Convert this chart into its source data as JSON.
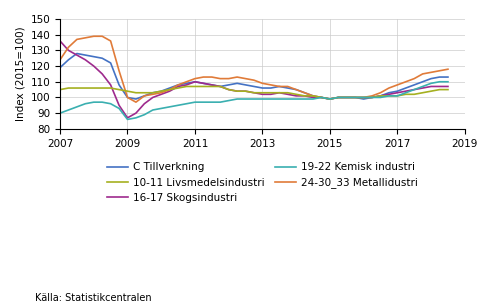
{
  "title": "",
  "ylabel": "Index (2015=100)",
  "xlabel": "",
  "source": "Källa: Statistikcentralen",
  "ylim": [
    80,
    150
  ],
  "yticks": [
    80,
    90,
    100,
    110,
    120,
    130,
    140,
    150
  ],
  "xlim": [
    2007.0,
    2019.0
  ],
  "xticks": [
    2007,
    2009,
    2011,
    2013,
    2015,
    2017,
    2019
  ],
  "background_color": "#ffffff",
  "grid_color": "#cccccc",
  "series": {
    "C Tillverkning": {
      "color": "#4472c4",
      "data_x": [
        2007.0,
        2007.25,
        2007.5,
        2007.75,
        2008.0,
        2008.25,
        2008.5,
        2008.75,
        2009.0,
        2009.25,
        2009.5,
        2009.75,
        2010.0,
        2010.25,
        2010.5,
        2010.75,
        2011.0,
        2011.25,
        2011.5,
        2011.75,
        2012.0,
        2012.25,
        2012.5,
        2012.75,
        2013.0,
        2013.25,
        2013.5,
        2013.75,
        2014.0,
        2014.25,
        2014.5,
        2014.75,
        2015.0,
        2015.25,
        2015.5,
        2015.75,
        2016.0,
        2016.25,
        2016.5,
        2016.75,
        2017.0,
        2017.25,
        2017.5,
        2017.75,
        2018.0,
        2018.25,
        2018.5
      ],
      "data_y": [
        119,
        124,
        128,
        127,
        126,
        125,
        122,
        108,
        100,
        99,
        101,
        103,
        104,
        106,
        108,
        109,
        110,
        109,
        108,
        107,
        108,
        109,
        108,
        107,
        106,
        106,
        107,
        106,
        105,
        103,
        101,
        100,
        99,
        100,
        100,
        100,
        99,
        100,
        101,
        103,
        104,
        106,
        108,
        110,
        112,
        113,
        113
      ]
    },
    "16-17 Skogsindustri": {
      "color": "#9e2a8d",
      "data_x": [
        2007.0,
        2007.25,
        2007.5,
        2007.75,
        2008.0,
        2008.25,
        2008.5,
        2008.75,
        2009.0,
        2009.25,
        2009.5,
        2009.75,
        2010.0,
        2010.25,
        2010.5,
        2010.75,
        2011.0,
        2011.25,
        2011.5,
        2011.75,
        2012.0,
        2012.25,
        2012.5,
        2012.75,
        2013.0,
        2013.25,
        2013.5,
        2013.75,
        2014.0,
        2014.25,
        2014.5,
        2014.75,
        2015.0,
        2015.25,
        2015.5,
        2015.75,
        2016.0,
        2016.25,
        2016.5,
        2016.75,
        2017.0,
        2017.25,
        2017.5,
        2017.75,
        2018.0,
        2018.25,
        2018.5
      ],
      "data_y": [
        136,
        130,
        127,
        124,
        120,
        115,
        108,
        95,
        87,
        90,
        96,
        100,
        102,
        104,
        107,
        108,
        110,
        109,
        108,
        107,
        105,
        104,
        104,
        103,
        102,
        102,
        103,
        102,
        101,
        101,
        100,
        100,
        99,
        100,
        100,
        100,
        100,
        100,
        101,
        102,
        103,
        104,
        105,
        106,
        107,
        107,
        107
      ]
    },
    "24-30_33 Metallidustri": {
      "color": "#e07b39",
      "data_x": [
        2007.0,
        2007.25,
        2007.5,
        2007.75,
        2008.0,
        2008.25,
        2008.5,
        2008.75,
        2009.0,
        2009.25,
        2009.5,
        2009.75,
        2010.0,
        2010.25,
        2010.5,
        2010.75,
        2011.0,
        2011.25,
        2011.5,
        2011.75,
        2012.0,
        2012.25,
        2012.5,
        2012.75,
        2013.0,
        2013.25,
        2013.5,
        2013.75,
        2014.0,
        2014.25,
        2014.5,
        2014.75,
        2015.0,
        2015.25,
        2015.5,
        2015.75,
        2016.0,
        2016.25,
        2016.5,
        2016.75,
        2017.0,
        2017.25,
        2017.5,
        2017.75,
        2018.0,
        2018.25,
        2018.5
      ],
      "data_y": [
        124,
        132,
        137,
        138,
        139,
        139,
        136,
        117,
        100,
        97,
        101,
        102,
        103,
        105,
        108,
        110,
        112,
        113,
        113,
        112,
        112,
        113,
        112,
        111,
        109,
        108,
        107,
        107,
        105,
        103,
        101,
        100,
        99,
        100,
        100,
        100,
        100,
        101,
        103,
        106,
        108,
        110,
        112,
        115,
        116,
        117,
        118
      ]
    },
    "10-11 Livsmedelsindustri": {
      "color": "#a5b020",
      "data_x": [
        2007.0,
        2007.25,
        2007.5,
        2007.75,
        2008.0,
        2008.25,
        2008.5,
        2008.75,
        2009.0,
        2009.25,
        2009.5,
        2009.75,
        2010.0,
        2010.25,
        2010.5,
        2010.75,
        2011.0,
        2011.25,
        2011.5,
        2011.75,
        2012.0,
        2012.25,
        2012.5,
        2012.75,
        2013.0,
        2013.25,
        2013.5,
        2013.75,
        2014.0,
        2014.25,
        2014.5,
        2014.75,
        2015.0,
        2015.25,
        2015.5,
        2015.75,
        2016.0,
        2016.25,
        2016.5,
        2016.75,
        2017.0,
        2017.25,
        2017.5,
        2017.75,
        2018.0,
        2018.25,
        2018.5
      ],
      "data_y": [
        105,
        106,
        106,
        106,
        106,
        106,
        106,
        105,
        104,
        103,
        103,
        103,
        104,
        105,
        106,
        107,
        107,
        107,
        107,
        107,
        105,
        104,
        104,
        103,
        103,
        103,
        103,
        103,
        102,
        101,
        101,
        100,
        99,
        100,
        100,
        100,
        100,
        100,
        101,
        101,
        101,
        102,
        102,
        103,
        104,
        105,
        105
      ]
    },
    "19-22 Kemisk industri": {
      "color": "#3aafb0",
      "data_x": [
        2007.0,
        2007.25,
        2007.5,
        2007.75,
        2008.0,
        2008.25,
        2008.5,
        2008.75,
        2009.0,
        2009.25,
        2009.5,
        2009.75,
        2010.0,
        2010.25,
        2010.5,
        2010.75,
        2011.0,
        2011.25,
        2011.5,
        2011.75,
        2012.0,
        2012.25,
        2012.5,
        2012.75,
        2013.0,
        2013.25,
        2013.5,
        2013.75,
        2014.0,
        2014.25,
        2014.5,
        2014.75,
        2015.0,
        2015.25,
        2015.5,
        2015.75,
        2016.0,
        2016.25,
        2016.5,
        2016.75,
        2017.0,
        2017.25,
        2017.5,
        2017.75,
        2018.0,
        2018.25,
        2018.5
      ],
      "data_y": [
        90,
        92,
        94,
        96,
        97,
        97,
        96,
        93,
        86,
        87,
        89,
        92,
        93,
        94,
        95,
        96,
        97,
        97,
        97,
        97,
        98,
        99,
        99,
        99,
        99,
        99,
        99,
        99,
        99,
        99,
        99,
        100,
        99,
        100,
        100,
        100,
        100,
        100,
        100,
        101,
        101,
        103,
        105,
        107,
        109,
        110,
        110
      ]
    }
  },
  "legend": {
    "entries": [
      "C Tillverkning",
      "10-11 Livsmedelsindustri",
      "16-17 Skogsindustri",
      "19-22 Kemisk industri",
      "24-30_33 Metallidustri"
    ],
    "ncol": 2,
    "fontsize": 7.5
  }
}
